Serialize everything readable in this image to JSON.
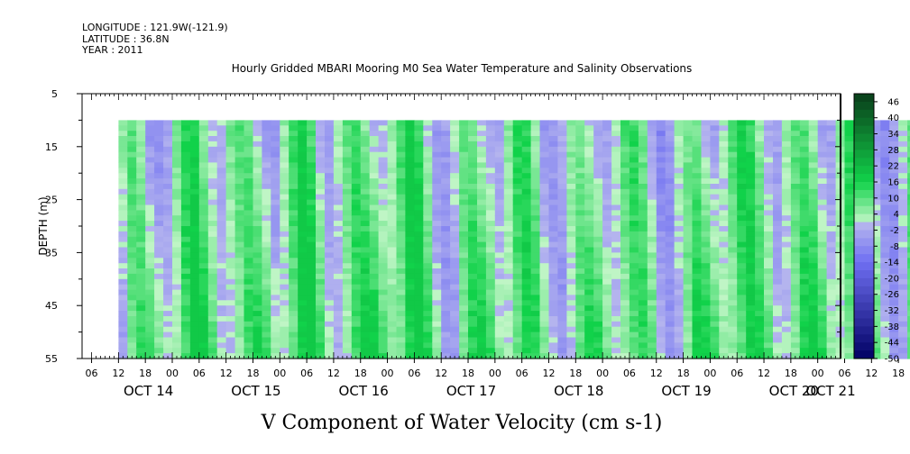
{
  "header": {
    "longitude": "LONGITUDE : 121.9W(-121.9)",
    "latitude": "LATITUDE : 36.8N",
    "year": "YEAR : 2011",
    "title": "Hourly Gridded MBARI Mooring M0 Sea Water Temperature and Salinity Observations"
  },
  "chart_data": {
    "type": "heatmap",
    "title": "Hourly Gridded MBARI Mooring M0 Sea Water Temperature and Salinity Observations",
    "xlabel": "V Component of Water Velocity (cm s-1)",
    "ylabel": "DEPTH (m)",
    "y_ticks": [
      "5",
      "15",
      "25",
      "35",
      "45",
      "55"
    ],
    "ylim": [
      55,
      5
    ],
    "y_inverted": true,
    "x_hour_ticks": [
      "06",
      "12",
      "18",
      "00",
      "06",
      "12",
      "18",
      "00",
      "06",
      "12",
      "18",
      "00",
      "06",
      "12",
      "18",
      "00",
      "06",
      "12",
      "18",
      "00",
      "06",
      "12",
      "18",
      "00",
      "06",
      "12",
      "18",
      "00",
      "06",
      "12",
      "18",
      "00"
    ],
    "x_day_labels": [
      "OCT 14",
      "OCT 15",
      "OCT 16",
      "OCT 17",
      "OCT 18",
      "OCT 19",
      "OCT 20",
      "OCT 21"
    ],
    "data_depth_range": [
      10,
      55
    ],
    "data_time_start": "OCT 13 12:00",
    "colorbar_labels": [
      "46",
      "40",
      "34",
      "28",
      "22",
      "16",
      "10",
      "4",
      "-2",
      "-8",
      "-14",
      "-20",
      "-26",
      "-32",
      "-38",
      "-44",
      "-50"
    ],
    "colorbar_range": [
      -50,
      49
    ],
    "colorbar_step": 3,
    "colors": {
      "positive_dark": "#0a3d1a",
      "positive_mid": "#11d24a",
      "positive_light": "#bff5c5",
      "negative_light": "#b9b9ee",
      "negative_mid": "#6f6ff2",
      "negative_dark": "#000063"
    },
    "grid": false
  }
}
